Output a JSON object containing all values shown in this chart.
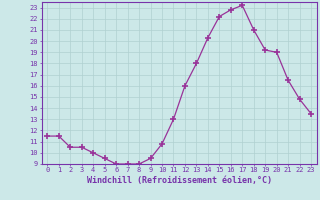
{
  "x": [
    0,
    1,
    2,
    3,
    4,
    5,
    6,
    7,
    8,
    9,
    10,
    11,
    12,
    13,
    14,
    15,
    16,
    17,
    18,
    19,
    20,
    21,
    22,
    23
  ],
  "y": [
    11.5,
    11.5,
    10.5,
    10.5,
    10.0,
    9.5,
    9.0,
    9.0,
    9.0,
    9.5,
    10.8,
    13.0,
    16.0,
    18.0,
    20.3,
    22.2,
    22.8,
    23.2,
    21.0,
    19.2,
    19.0,
    16.5,
    14.8,
    13.5
  ],
  "line_color": "#993399",
  "marker": "+",
  "marker_size": 4,
  "marker_lw": 1.2,
  "bg_color": "#cce8e8",
  "grid_color": "#b0d0d0",
  "xlabel": "Windchill (Refroidissement éolien,°C)",
  "ylim": [
    9,
    23.5
  ],
  "xlim": [
    -0.5,
    23.5
  ],
  "yticks": [
    9,
    10,
    11,
    12,
    13,
    14,
    15,
    16,
    17,
    18,
    19,
    20,
    21,
    22,
    23
  ],
  "xticks": [
    0,
    1,
    2,
    3,
    4,
    5,
    6,
    7,
    8,
    9,
    10,
    11,
    12,
    13,
    14,
    15,
    16,
    17,
    18,
    19,
    20,
    21,
    22,
    23
  ],
  "tick_fontsize": 5.0,
  "xlabel_fontsize": 6.0,
  "label_color": "#7733aa",
  "spine_color": "#7733aa",
  "line_width": 0.9
}
